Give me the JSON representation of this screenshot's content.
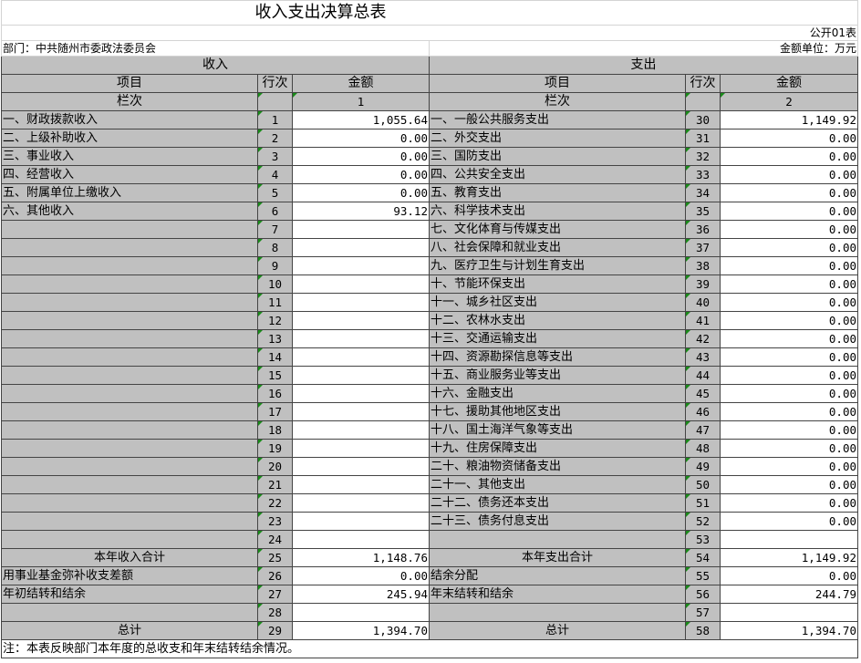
{
  "title": "收入支出决算总表",
  "form_no": "公开01表",
  "department": "部门：中共随州市委政法委员会",
  "unit": "金额单位：万元",
  "headers": {
    "income": "收入",
    "expense": "支出",
    "item": "项目",
    "line": "行次",
    "amount": "金额",
    "column_no": "栏次",
    "col1": "1",
    "col2": "2"
  },
  "rows": [
    [
      "一、财政拨款收入",
      "1",
      "1,055.64",
      "一、一般公共服务支出",
      "30",
      "1,149.92"
    ],
    [
      "二、上级补助收入",
      "2",
      "0.00",
      "二、外交支出",
      "31",
      "0.00"
    ],
    [
      "三、事业收入",
      "3",
      "0.00",
      "三、国防支出",
      "32",
      "0.00"
    ],
    [
      "四、经营收入",
      "4",
      "0.00",
      "四、公共安全支出",
      "33",
      "0.00"
    ],
    [
      "五、附属单位上缴收入",
      "5",
      "0.00",
      "五、教育支出",
      "34",
      "0.00"
    ],
    [
      "六、其他收入",
      "6",
      "93.12",
      "六、科学技术支出",
      "35",
      "0.00"
    ],
    [
      "",
      "7",
      "",
      "七、文化体育与传媒支出",
      "36",
      "0.00"
    ],
    [
      "",
      "8",
      "",
      "八、社会保障和就业支出",
      "37",
      "0.00"
    ],
    [
      "",
      "9",
      "",
      "九、医疗卫生与计划生育支出",
      "38",
      "0.00"
    ],
    [
      "",
      "10",
      "",
      "十、节能环保支出",
      "39",
      "0.00"
    ],
    [
      "",
      "11",
      "",
      "十一、城乡社区支出",
      "40",
      "0.00"
    ],
    [
      "",
      "12",
      "",
      "十二、农林水支出",
      "41",
      "0.00"
    ],
    [
      "",
      "13",
      "",
      "十三、交通运输支出",
      "42",
      "0.00"
    ],
    [
      "",
      "14",
      "",
      "十四、资源勘探信息等支出",
      "43",
      "0.00"
    ],
    [
      "",
      "15",
      "",
      "十五、商业服务业等支出",
      "44",
      "0.00"
    ],
    [
      "",
      "16",
      "",
      "十六、金融支出",
      "45",
      "0.00"
    ],
    [
      "",
      "17",
      "",
      "十七、援助其他地区支出",
      "46",
      "0.00"
    ],
    [
      "",
      "18",
      "",
      "十八、国土海洋气象等支出",
      "47",
      "0.00"
    ],
    [
      "",
      "19",
      "",
      "十九、住房保障支出",
      "48",
      "0.00"
    ],
    [
      "",
      "20",
      "",
      "二十、粮油物资储备支出",
      "49",
      "0.00"
    ],
    [
      "",
      "21",
      "",
      "二十一、其他支出",
      "50",
      "0.00"
    ],
    [
      "",
      "22",
      "",
      "二十二、债务还本支出",
      "51",
      "0.00"
    ],
    [
      "",
      "23",
      "",
      "二十三、债务付息支出",
      "52",
      "0.00"
    ],
    [
      "",
      "24",
      "",
      "",
      "53",
      ""
    ],
    [
      "本年收入合计",
      "25",
      "1,148.76",
      "本年支出合计",
      "54",
      "1,149.92"
    ],
    [
      "用事业基金弥补收支差额",
      "26",
      "0.00",
      "结余分配",
      "55",
      "0.00"
    ],
    [
      "年初结转和结余",
      "27",
      "245.94",
      "年末结转和结余",
      "56",
      "244.79"
    ],
    [
      "",
      "28",
      "",
      "",
      "57",
      ""
    ],
    [
      "总计",
      "29",
      "1,394.70",
      "总计",
      "58",
      "1,394.70"
    ]
  ],
  "centered_rows": [
    24,
    28
  ],
  "note": "注：本表反映部门本年度的总收支和年末结转结余情况。"
}
